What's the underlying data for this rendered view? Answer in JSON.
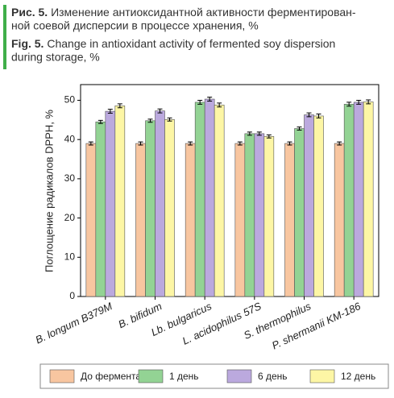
{
  "caption": {
    "ru_label": "Рис. 5.",
    "ru_lines": [
      "Изменение антиоксидантной активности ферментирован-",
      "ной соевой дисперсии в процессе хранения, %"
    ],
    "en_label": "Fig. 5.",
    "en_lines": [
      "Change in antioxidant activity of fermented soy dispersion",
      "during storage, %"
    ]
  },
  "chart_data": {
    "type": "bar",
    "y_label": "Поглощение радикалов DPPH, %",
    "categories": [
      "B. longum B379M",
      "B. bifidum",
      "Lb. bulgaricus",
      "L. acidophilus 57S",
      "S. thermophilus",
      "P. shermanii KM-186"
    ],
    "series": [
      {
        "name": "До ферментации",
        "color": "#f8c6a0",
        "values": [
          39,
          39,
          39,
          39,
          39,
          39
        ],
        "errors": [
          0.4,
          0.4,
          0.4,
          0.4,
          0.4,
          0.4
        ]
      },
      {
        "name": "1 день",
        "color": "#93d394",
        "values": [
          44.5,
          44.8,
          49.5,
          41.5,
          42.8,
          49
        ],
        "errors": [
          0.4,
          0.4,
          0.5,
          0.4,
          0.4,
          0.5
        ]
      },
      {
        "name": "6 день",
        "color": "#bba9de",
        "values": [
          47.2,
          47.3,
          50.3,
          41.5,
          46.3,
          49.5
        ],
        "errors": [
          0.5,
          0.5,
          0.5,
          0.4,
          0.5,
          0.5
        ]
      },
      {
        "name": "12 день",
        "color": "#fdf6a5",
        "values": [
          48.6,
          45.1,
          48.8,
          40.8,
          46,
          49.6
        ],
        "errors": [
          0.5,
          0.4,
          0.5,
          0.4,
          0.5,
          0.5
        ]
      }
    ],
    "ylim": [
      0,
      54
    ],
    "yticks": [
      0,
      10,
      20,
      30,
      40,
      50
    ],
    "grid": false,
    "legend": "bottom"
  }
}
